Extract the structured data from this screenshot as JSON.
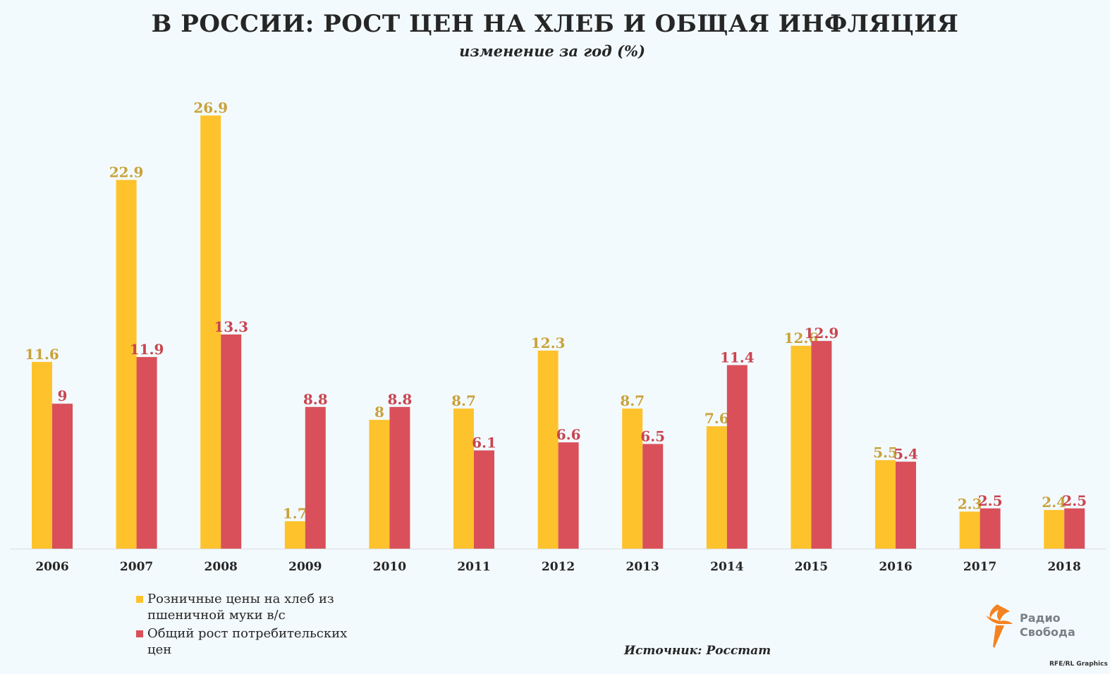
{
  "title": "В РОССИИ: РОСТ ЦЕН НА ХЛЕБ И ОБЩАЯ ИНФЛЯЦИЯ",
  "subtitle": "изменение за год (%)",
  "source": "Источник: Росстат",
  "logo": {
    "line1": "Радио",
    "line2": "Свобода",
    "icon": "torch-icon"
  },
  "credit": "RFE/RL Graphics",
  "colors": {
    "bread": "#fec32c",
    "cpi": "#d9505a",
    "bread_label": "#c9a23a",
    "cpi_label": "#c94550",
    "background": "#f3fafd"
  },
  "legend": {
    "bread": "Розничные цены на хлеб из пшеничной муки в/с",
    "cpi": "Общий рост потребительских цен"
  },
  "chart_data": {
    "type": "bar",
    "categories": [
      "2006",
      "2007",
      "2008",
      "2009",
      "2010",
      "2011",
      "2012",
      "2013",
      "2014",
      "2015",
      "2016",
      "2017",
      "2018"
    ],
    "series": [
      {
        "name": "Розничные цены на хлеб из пшеничной муки в/с",
        "values": [
          11.6,
          22.9,
          26.9,
          1.7,
          8,
          8.7,
          12.3,
          8.7,
          7.6,
          12.6,
          5.5,
          2.3,
          2.4
        ],
        "labels": [
          "11.6",
          "22.9",
          "26.9",
          "1.7",
          "8",
          "8.7",
          "12.3",
          "8.7",
          "7.6",
          "12.6",
          "5.5",
          "2.3",
          "2.4"
        ]
      },
      {
        "name": "Общий рост потребительских цен",
        "values": [
          9,
          11.9,
          13.3,
          8.8,
          8.8,
          6.1,
          6.6,
          6.5,
          11.4,
          12.9,
          5.4,
          2.5,
          2.5
        ],
        "labels": [
          "9",
          "11.9",
          "13.3",
          "8.8",
          "8.8",
          "6.1",
          "6.6",
          "6.5",
          "11.4",
          "12.9",
          "5.4",
          "2.5",
          "2.5"
        ]
      }
    ],
    "ylim": [
      0,
      26.9
    ],
    "grid": false,
    "legend_position": "bottom-left"
  }
}
